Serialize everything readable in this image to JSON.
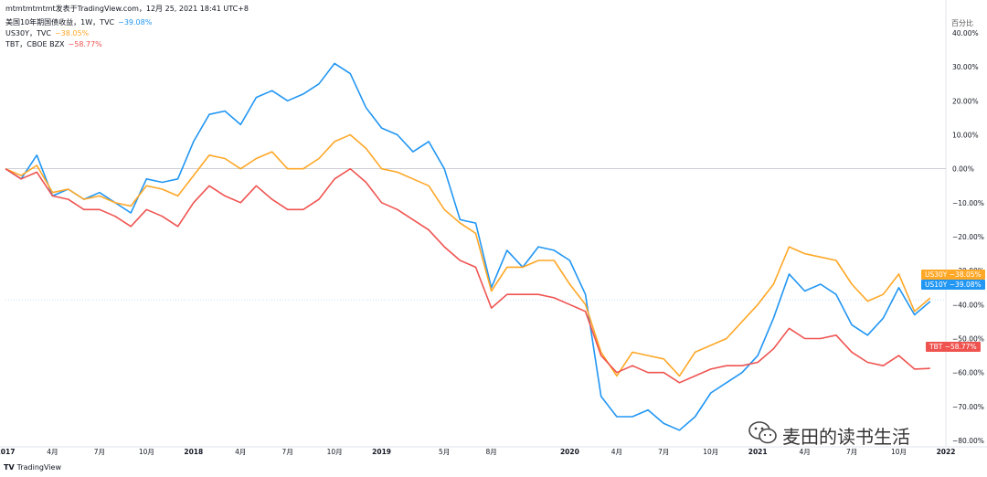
{
  "header": {
    "title_line": "mtmtmtmtmt发表于TradingView.com，12月 25, 2021 18:41 UTC+8",
    "legend": [
      {
        "label": "美国10年期国债收益，1W，TVC",
        "value": "−39.08%",
        "color": "#2196f3"
      },
      {
        "label": "US30Y，TVC",
        "value": "−38.05%",
        "color": "#ffa726"
      },
      {
        "label": "TBT，CBOE BZX",
        "value": "−58.77%",
        "color": "#ef5350"
      }
    ]
  },
  "scale_mode": "百分比",
  "price_tags": [
    {
      "name": "US30Y",
      "value": "−38.05%",
      "color": "#ffa726"
    },
    {
      "name": "US10Y",
      "value": "−39.08%",
      "color": "#2196f3"
    },
    {
      "name": "TBT",
      "value": "−58.77%",
      "color": "#ef5350"
    }
  ],
  "watermark": "麦田的读书生活",
  "footer": {
    "brand_mark": "TV",
    "brand": "TradingView"
  },
  "chart_data": {
    "type": "line",
    "y_unit": "%",
    "ylim": [
      -80,
      40
    ],
    "y_ticks": [
      "40.00%",
      "30.00%",
      "20.00%",
      "10.00%",
      "0.00%",
      "−10.00%",
      "−20.00%",
      "−30.00%",
      "−40.00%",
      "−50.00%",
      "−60.00%",
      "−70.00%",
      "−80.00%"
    ],
    "y_tick_values": [
      40,
      30,
      20,
      10,
      0,
      -10,
      -20,
      -30,
      -40,
      -50,
      -60,
      -70,
      -80
    ],
    "x_range": [
      "2017-01",
      "2022-01"
    ],
    "x_ticks": [
      {
        "label": "2017",
        "date": "2017-01"
      },
      {
        "label": "4月",
        "date": "2017-04"
      },
      {
        "label": "7月",
        "date": "2017-07"
      },
      {
        "label": "10月",
        "date": "2017-10"
      },
      {
        "label": "2018",
        "date": "2018-01"
      },
      {
        "label": "4月",
        "date": "2018-04"
      },
      {
        "label": "7月",
        "date": "2018-07"
      },
      {
        "label": "10月",
        "date": "2018-10"
      },
      {
        "label": "2019",
        "date": "2019-01"
      },
      {
        "label": "5月",
        "date": "2019-05"
      },
      {
        "label": "8月",
        "date": "2019-08"
      },
      {
        "label": "2020",
        "date": "2020-01"
      },
      {
        "label": "4月",
        "date": "2020-04"
      },
      {
        "label": "7月",
        "date": "2020-07"
      },
      {
        "label": "10月",
        "date": "2020-10"
      },
      {
        "label": "2021",
        "date": "2021-01"
      },
      {
        "label": "4月",
        "date": "2021-04"
      },
      {
        "label": "7月",
        "date": "2021-07"
      },
      {
        "label": "10月",
        "date": "2021-10"
      },
      {
        "label": "2022",
        "date": "2022-01"
      }
    ],
    "series": [
      {
        "name": "US10Y",
        "color": "#2196f3",
        "points": [
          [
            "2017-01",
            0
          ],
          [
            "2017-02",
            -3
          ],
          [
            "2017-03",
            4
          ],
          [
            "2017-04",
            -8
          ],
          [
            "2017-05",
            -6
          ],
          [
            "2017-06",
            -9
          ],
          [
            "2017-07",
            -7
          ],
          [
            "2017-08",
            -10
          ],
          [
            "2017-09",
            -13
          ],
          [
            "2017-10",
            -3
          ],
          [
            "2017-11",
            -4
          ],
          [
            "2017-12",
            -3
          ],
          [
            "2018-01",
            8
          ],
          [
            "2018-02",
            16
          ],
          [
            "2018-03",
            17
          ],
          [
            "2018-04",
            13
          ],
          [
            "2018-05",
            21
          ],
          [
            "2018-06",
            23
          ],
          [
            "2018-07",
            20
          ],
          [
            "2018-08",
            22
          ],
          [
            "2018-09",
            25
          ],
          [
            "2018-10",
            31
          ],
          [
            "2018-11",
            28
          ],
          [
            "2018-12",
            18
          ],
          [
            "2019-01",
            12
          ],
          [
            "2019-02",
            10
          ],
          [
            "2019-03",
            5
          ],
          [
            "2019-04",
            8
          ],
          [
            "2019-05",
            0
          ],
          [
            "2019-06",
            -15
          ],
          [
            "2019-07",
            -16
          ],
          [
            "2019-08",
            -35
          ],
          [
            "2019-09",
            -24
          ],
          [
            "2019-10",
            -29
          ],
          [
            "2019-11",
            -23
          ],
          [
            "2019-12",
            -24
          ],
          [
            "2020-01",
            -27
          ],
          [
            "2020-02",
            -37
          ],
          [
            "2020-03",
            -67
          ],
          [
            "2020-04",
            -73
          ],
          [
            "2020-05",
            -73
          ],
          [
            "2020-06",
            -71
          ],
          [
            "2020-07",
            -75
          ],
          [
            "2020-08",
            -77
          ],
          [
            "2020-09",
            -73
          ],
          [
            "2020-10",
            -66
          ],
          [
            "2020-11",
            -63
          ],
          [
            "2020-12",
            -60
          ],
          [
            "2021-01",
            -55
          ],
          [
            "2021-02",
            -44
          ],
          [
            "2021-03",
            -31
          ],
          [
            "2021-04",
            -36
          ],
          [
            "2021-05",
            -34
          ],
          [
            "2021-06",
            -37
          ],
          [
            "2021-07",
            -46
          ],
          [
            "2021-08",
            -49
          ],
          [
            "2021-09",
            -44
          ],
          [
            "2021-10",
            -35
          ],
          [
            "2021-11",
            -43
          ],
          [
            "2021-12",
            -39.08
          ]
        ]
      },
      {
        "name": "US30Y",
        "color": "#ffa726",
        "points": [
          [
            "2017-01",
            0
          ],
          [
            "2017-02",
            -2
          ],
          [
            "2017-03",
            1
          ],
          [
            "2017-04",
            -7
          ],
          [
            "2017-05",
            -6
          ],
          [
            "2017-06",
            -9
          ],
          [
            "2017-07",
            -8
          ],
          [
            "2017-08",
            -10
          ],
          [
            "2017-09",
            -11
          ],
          [
            "2017-10",
            -5
          ],
          [
            "2017-11",
            -6
          ],
          [
            "2017-12",
            -8
          ],
          [
            "2018-01",
            -2
          ],
          [
            "2018-02",
            4
          ],
          [
            "2018-03",
            3
          ],
          [
            "2018-04",
            0
          ],
          [
            "2018-05",
            3
          ],
          [
            "2018-06",
            5
          ],
          [
            "2018-07",
            0
          ],
          [
            "2018-08",
            0
          ],
          [
            "2018-09",
            3
          ],
          [
            "2018-10",
            8
          ],
          [
            "2018-11",
            10
          ],
          [
            "2018-12",
            6
          ],
          [
            "2019-01",
            0
          ],
          [
            "2019-02",
            -1
          ],
          [
            "2019-03",
            -3
          ],
          [
            "2019-04",
            -5
          ],
          [
            "2019-05",
            -12
          ],
          [
            "2019-06",
            -16
          ],
          [
            "2019-07",
            -19
          ],
          [
            "2019-08",
            -36
          ],
          [
            "2019-09",
            -29
          ],
          [
            "2019-10",
            -29
          ],
          [
            "2019-11",
            -27
          ],
          [
            "2019-12",
            -27
          ],
          [
            "2020-01",
            -34
          ],
          [
            "2020-02",
            -40
          ],
          [
            "2020-03",
            -54
          ],
          [
            "2020-04",
            -61
          ],
          [
            "2020-05",
            -54
          ],
          [
            "2020-06",
            -55
          ],
          [
            "2020-07",
            -56
          ],
          [
            "2020-08",
            -61
          ],
          [
            "2020-09",
            -54
          ],
          [
            "2020-10",
            -52
          ],
          [
            "2020-11",
            -50
          ],
          [
            "2020-12",
            -45
          ],
          [
            "2021-01",
            -40
          ],
          [
            "2021-02",
            -34
          ],
          [
            "2021-03",
            -23
          ],
          [
            "2021-04",
            -25
          ],
          [
            "2021-05",
            -26
          ],
          [
            "2021-06",
            -27
          ],
          [
            "2021-07",
            -34
          ],
          [
            "2021-08",
            -39
          ],
          [
            "2021-09",
            -37
          ],
          [
            "2021-10",
            -31
          ],
          [
            "2021-11",
            -42
          ],
          [
            "2021-12",
            -38.05
          ]
        ]
      },
      {
        "name": "TBT",
        "color": "#ef5350",
        "points": [
          [
            "2017-01",
            0
          ],
          [
            "2017-02",
            -3
          ],
          [
            "2017-03",
            -1
          ],
          [
            "2017-04",
            -8
          ],
          [
            "2017-05",
            -9
          ],
          [
            "2017-06",
            -12
          ],
          [
            "2017-07",
            -12
          ],
          [
            "2017-08",
            -14
          ],
          [
            "2017-09",
            -17
          ],
          [
            "2017-10",
            -12
          ],
          [
            "2017-11",
            -14
          ],
          [
            "2017-12",
            -17
          ],
          [
            "2018-01",
            -10
          ],
          [
            "2018-02",
            -5
          ],
          [
            "2018-03",
            -8
          ],
          [
            "2018-04",
            -10
          ],
          [
            "2018-05",
            -5
          ],
          [
            "2018-06",
            -9
          ],
          [
            "2018-07",
            -12
          ],
          [
            "2018-08",
            -12
          ],
          [
            "2018-09",
            -9
          ],
          [
            "2018-10",
            -3
          ],
          [
            "2018-11",
            0
          ],
          [
            "2018-12",
            -4
          ],
          [
            "2019-01",
            -10
          ],
          [
            "2019-02",
            -12
          ],
          [
            "2019-03",
            -15
          ],
          [
            "2019-04",
            -18
          ],
          [
            "2019-05",
            -23
          ],
          [
            "2019-06",
            -27
          ],
          [
            "2019-07",
            -29
          ],
          [
            "2019-08",
            -41
          ],
          [
            "2019-09",
            -37
          ],
          [
            "2019-10",
            -37
          ],
          [
            "2019-11",
            -37
          ],
          [
            "2019-12",
            -38
          ],
          [
            "2020-01",
            -40
          ],
          [
            "2020-02",
            -42
          ],
          [
            "2020-03",
            -55
          ],
          [
            "2020-04",
            -60
          ],
          [
            "2020-05",
            -58
          ],
          [
            "2020-06",
            -60
          ],
          [
            "2020-07",
            -60
          ],
          [
            "2020-08",
            -63
          ],
          [
            "2020-09",
            -61
          ],
          [
            "2020-10",
            -59
          ],
          [
            "2020-11",
            -58
          ],
          [
            "2020-12",
            -58
          ],
          [
            "2021-01",
            -57
          ],
          [
            "2021-02",
            -53
          ],
          [
            "2021-03",
            -47
          ],
          [
            "2021-04",
            -50
          ],
          [
            "2021-05",
            -50
          ],
          [
            "2021-06",
            -49
          ],
          [
            "2021-07",
            -54
          ],
          [
            "2021-08",
            -57
          ],
          [
            "2021-09",
            -58
          ],
          [
            "2021-10",
            -55
          ],
          [
            "2021-11",
            -59
          ],
          [
            "2021-12",
            -58.77
          ]
        ]
      }
    ]
  }
}
